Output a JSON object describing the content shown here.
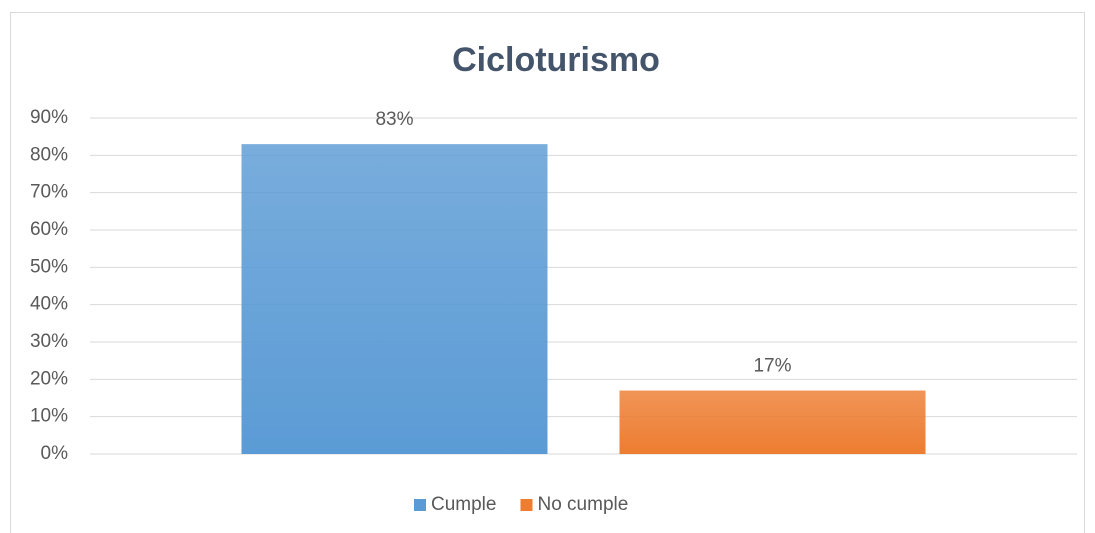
{
  "chart_data": {
    "type": "bar",
    "title": "Cicloturismo",
    "categories": [
      null
    ],
    "series": [
      {
        "name": "Cumple",
        "color": "#5b9bd5",
        "values": [
          83
        ],
        "value_labels": [
          "83%"
        ]
      },
      {
        "name": "No cumple",
        "color": "#ed7d31",
        "values": [
          17
        ],
        "value_labels": [
          "17%"
        ]
      }
    ],
    "ylim": [
      0,
      90
    ],
    "yticks": [
      {
        "value": 0,
        "label": "0%"
      },
      {
        "value": 10,
        "label": "10%"
      },
      {
        "value": 20,
        "label": "20%"
      },
      {
        "value": 30,
        "label": "30%"
      },
      {
        "value": 40,
        "label": "40%"
      },
      {
        "value": 50,
        "label": "50%"
      },
      {
        "value": 60,
        "label": "60%"
      },
      {
        "value": 70,
        "label": "70%"
      },
      {
        "value": 80,
        "label": "80%"
      },
      {
        "value": 90,
        "label": "90%"
      }
    ],
    "grid": true,
    "legend": "bottom"
  }
}
